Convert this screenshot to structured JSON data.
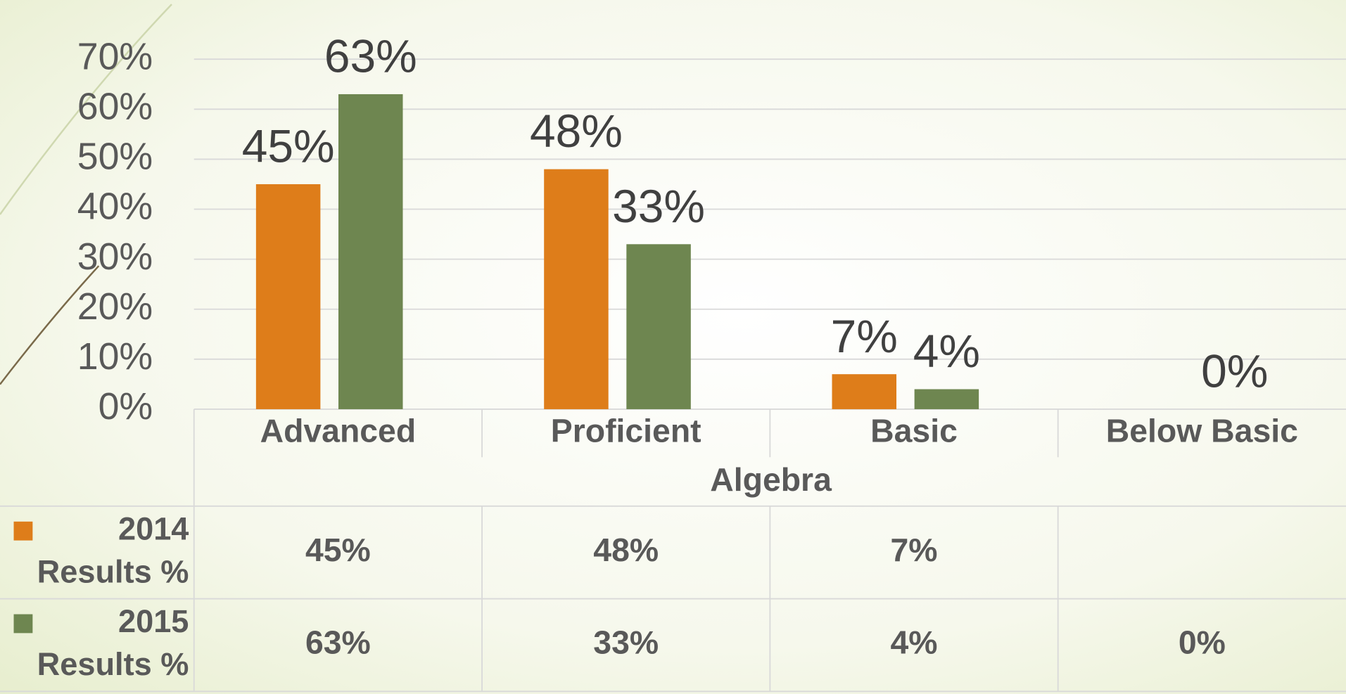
{
  "chart_data": {
    "type": "bar",
    "x_group_label": "Algebra",
    "categories": [
      "Advanced",
      "Proficient",
      "Basic",
      "Below Basic"
    ],
    "series": [
      {
        "name": "2014 Results %",
        "color": "#de7d1a",
        "values": [
          45,
          48,
          7,
          null
        ],
        "value_labels": [
          "45%",
          "48%",
          "7%",
          null
        ]
      },
      {
        "name": "2015 Results %",
        "color": "#6e8650",
        "values": [
          63,
          33,
          4,
          0
        ],
        "value_labels": [
          "63%",
          "33%",
          "4%",
          "0%"
        ]
      }
    ],
    "ylim": [
      0,
      70
    ],
    "yticks": [
      {
        "value": 0,
        "label": "0%"
      },
      {
        "value": 10,
        "label": "10%"
      },
      {
        "value": 20,
        "label": "20%"
      },
      {
        "value": 30,
        "label": "30%"
      },
      {
        "value": 40,
        "label": "40%"
      },
      {
        "value": 50,
        "label": "50%"
      },
      {
        "value": 60,
        "label": "60%"
      },
      {
        "value": 70,
        "label": "70%"
      }
    ],
    "grid": true,
    "data_table": true
  }
}
